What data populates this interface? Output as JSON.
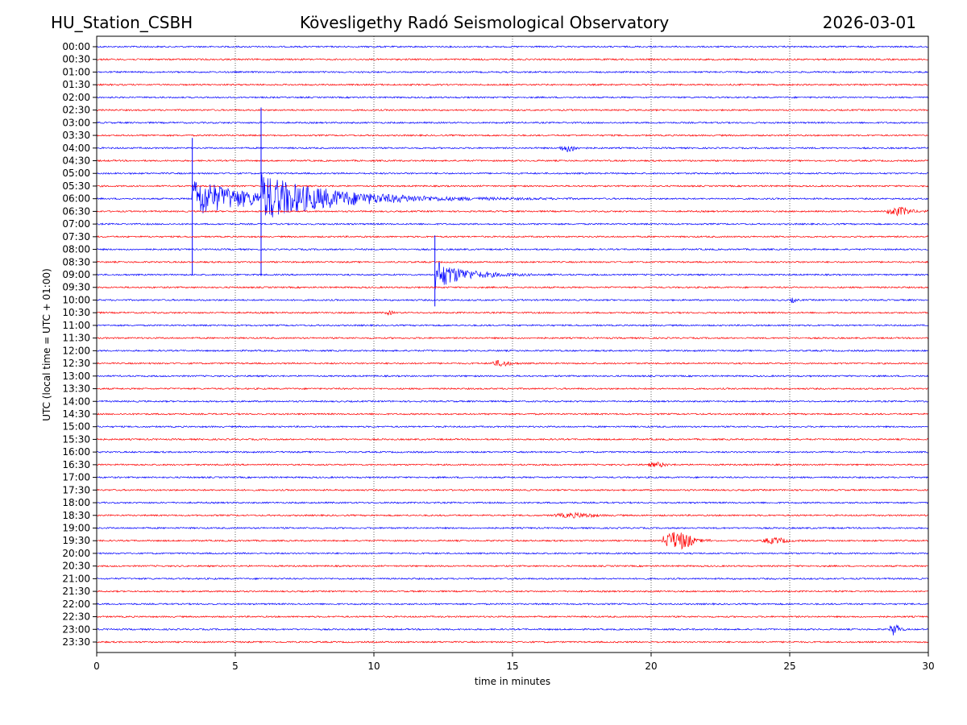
{
  "header": {
    "station": "HU_Station_CSBH",
    "title": "Kövesligethy Radó Seismological Observatory",
    "date": "2026-03-01"
  },
  "chart_data": {
    "type": "line",
    "title": "Kövesligethy Radó Seismological Observatory",
    "xlabel": "time in minutes",
    "ylabel": "UTC (local time = UTC + 01:00)",
    "xlim": [
      0,
      30
    ],
    "xticks": [
      0,
      5,
      10,
      15,
      20,
      25,
      30
    ],
    "xgrid": true,
    "row_labels": [
      "00:00",
      "00:30",
      "01:00",
      "01:30",
      "02:00",
      "02:30",
      "03:00",
      "03:30",
      "04:00",
      "04:30",
      "05:00",
      "05:30",
      "06:00",
      "06:30",
      "07:00",
      "07:30",
      "08:00",
      "08:30",
      "09:00",
      "09:30",
      "10:00",
      "10:30",
      "11:00",
      "11:30",
      "12:00",
      "12:30",
      "13:00",
      "13:30",
      "14:00",
      "14:30",
      "15:00",
      "15:30",
      "16:00",
      "16:30",
      "17:00",
      "17:30",
      "18:00",
      "18:30",
      "19:00",
      "19:30",
      "20:00",
      "20:30",
      "21:00",
      "21:30",
      "22:00",
      "22:30",
      "23:00",
      "23:30"
    ],
    "colors": [
      "#0000ff",
      "#ff0000"
    ],
    "noise_amplitude_rows": 0.06,
    "events": [
      {
        "row": "04:00",
        "start_min": 16.7,
        "end_min": 17.7,
        "amplitude_rows": 0.25,
        "spike": false
      },
      {
        "row": "06:00",
        "start_min": 3.45,
        "end_min": 12.0,
        "amplitude_rows": 1.6,
        "spike": true,
        "spike_up_rows": 4.8,
        "spike_down_rows": 6.0
      },
      {
        "row": "06:00",
        "start_min": 5.93,
        "end_min": 17.5,
        "amplitude_rows": 1.5,
        "spike": true,
        "spike_up_rows": 7.2,
        "spike_down_rows": 6.1
      },
      {
        "row": "06:30",
        "start_min": 28.5,
        "end_min": 30.0,
        "amplitude_rows": 0.3,
        "spike": false
      },
      {
        "row": "09:00",
        "start_min": 12.2,
        "end_min": 16.5,
        "amplitude_rows": 1.2,
        "spike": true,
        "spike_up_rows": 3.1,
        "spike_down_rows": 2.5
      },
      {
        "row": "10:00",
        "start_min": 25.0,
        "end_min": 25.4,
        "amplitude_rows": 0.15,
        "spike": false
      },
      {
        "row": "10:30",
        "start_min": 10.4,
        "end_min": 10.9,
        "amplitude_rows": 0.12,
        "spike": false
      },
      {
        "row": "12:30",
        "start_min": 14.2,
        "end_min": 15.4,
        "amplitude_rows": 0.2,
        "spike": false
      },
      {
        "row": "16:30",
        "start_min": 19.9,
        "end_min": 21.0,
        "amplitude_rows": 0.15,
        "spike": false
      },
      {
        "row": "18:30",
        "start_min": 16.5,
        "end_min": 19.0,
        "amplitude_rows": 0.15,
        "spike": false
      },
      {
        "row": "19:30",
        "start_min": 20.4,
        "end_min": 22.2,
        "amplitude_rows": 0.7,
        "spike": false
      },
      {
        "row": "19:30",
        "start_min": 24.0,
        "end_min": 25.5,
        "amplitude_rows": 0.2,
        "spike": false
      },
      {
        "row": "23:00",
        "start_min": 28.6,
        "end_min": 29.2,
        "amplitude_rows": 0.45,
        "spike": false
      }
    ]
  }
}
